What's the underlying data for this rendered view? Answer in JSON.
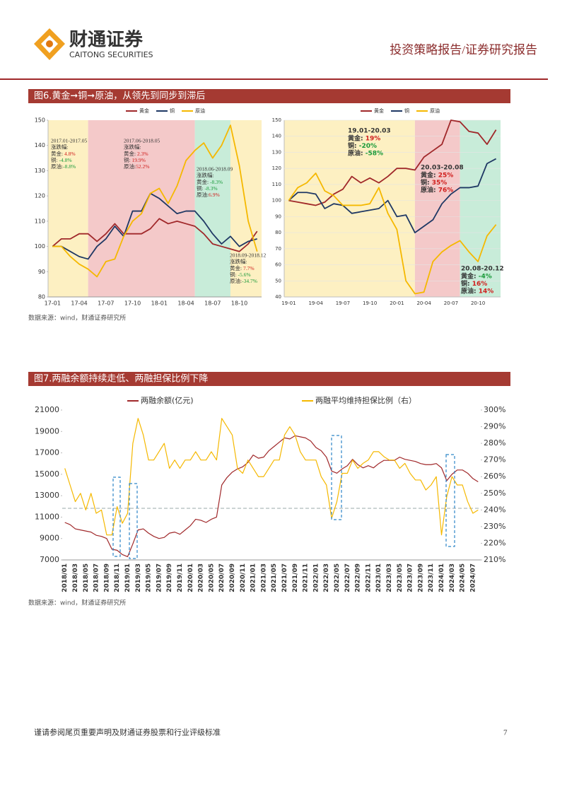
{
  "header": {
    "brand": "财通证券",
    "brand_en": "CAITONG SECURITIES",
    "report_type": "投资策略报告/证券研究报告"
  },
  "figures": [
    {
      "caption": "图6.黄金➞铜➞原油，从领先到同步到滞后",
      "source": "数据来源：wind，财通证券研究所"
    },
    {
      "caption": "图7.两融余额持续走低、两融担保比例下降",
      "source": "数据来源：wind，财通证券研究所"
    }
  ],
  "chart_data": [
    {
      "type": "line",
      "categories": [
        "17-01",
        null,
        null,
        "17-04",
        null,
        null,
        "17-07",
        null,
        null,
        "17-10",
        null,
        null,
        "18-01",
        null,
        null,
        "18-04",
        null,
        null,
        "18-07",
        null,
        null,
        "18-10",
        null,
        null
      ],
      "series": [
        {
          "name": "黄金",
          "color": "#a0282a",
          "values": [
            100,
            103,
            103,
            105,
            105,
            102,
            105,
            109,
            105,
            105,
            105,
            107,
            111,
            109,
            110,
            109,
            108,
            105,
            101,
            100,
            99,
            98,
            101,
            106
          ]
        },
        {
          "name": "铜",
          "color": "#1f3864",
          "values": [
            100,
            100,
            98,
            96,
            95,
            100,
            103,
            108,
            104,
            114,
            114,
            121,
            119,
            116,
            113,
            114,
            114,
            110,
            105,
            101,
            104,
            100,
            102,
            103
          ]
        },
        {
          "name": "原油",
          "color": "#f5b800",
          "values": [
            100,
            100,
            96,
            93,
            91,
            88,
            94,
            95,
            104,
            110,
            113,
            121,
            123,
            117,
            124,
            134,
            138,
            141,
            135,
            140,
            148,
            132,
            110,
            98
          ]
        }
      ],
      "ylim": [
        80,
        150
      ],
      "yticks": [
        80,
        90,
        100,
        110,
        120,
        130,
        140,
        150
      ],
      "grid": false,
      "shaded": [
        {
          "range": [
            0,
            4
          ],
          "color": "#fdf0c2"
        },
        {
          "range": [
            4,
            16
          ],
          "color": "#f4c9c9"
        },
        {
          "range": [
            16,
            20
          ],
          "color": "#c8ecd9"
        },
        {
          "range": [
            20,
            23
          ],
          "color": "#fdf0c2"
        }
      ],
      "annotations": [
        {
          "lines": [
            "2017.01-2017.05",
            "涨跌幅:",
            {
              "label": "黄金: ",
              "value": "4.8%"
            },
            {
              "label": "铜: ",
              "value": "-4.8%"
            },
            {
              "label": "原油:",
              "value": "-8.8%"
            }
          ]
        },
        {
          "lines": [
            "2017.06-2018.05",
            "涨跌幅:",
            {
              "label": "黄金: ",
              "value": "2.3%"
            },
            {
              "label": "铜: ",
              "value": "19.9%"
            },
            {
              "label": "原油:",
              "value": "52.2%"
            }
          ]
        },
        {
          "lines": [
            "2018.06-2018.09",
            "涨跌幅:",
            {
              "label": "黄金: ",
              "value": "-8.3%"
            },
            {
              "label": "铜: ",
              "value": "-8.3%"
            },
            {
              "label": "原油:",
              "value": "6.9%"
            }
          ]
        },
        {
          "lines": [
            "2018.09-2018.12",
            "涨跌幅:",
            {
              "label": "黄金: ",
              "value": "7.7%"
            },
            {
              "label": "铜: ",
              "value": "-5.6%"
            },
            {
              "label": "原油:",
              "value": "-34.7%"
            }
          ]
        }
      ]
    },
    {
      "type": "line",
      "categories": [
        "19-01",
        null,
        null,
        "19-04",
        null,
        null,
        "19-07",
        null,
        null,
        "19-10",
        null,
        null,
        "20-01",
        null,
        null,
        "20-04",
        null,
        null,
        "20-07",
        null,
        null,
        "20-10",
        null,
        null
      ],
      "series": [
        {
          "name": "黄金",
          "color": "#a0282a",
          "values": [
            100,
            99,
            98,
            97,
            99,
            104,
            107,
            115,
            111,
            114,
            111,
            115,
            120,
            120,
            119,
            127,
            131,
            135,
            150,
            149,
            143,
            142,
            135,
            144
          ]
        },
        {
          "name": "铜",
          "color": "#1f3864",
          "values": [
            100,
            105,
            105,
            104,
            95,
            98,
            97,
            92,
            93,
            94,
            95,
            100,
            90,
            91,
            80,
            84,
            88,
            98,
            104,
            108,
            108,
            109,
            123,
            126
          ]
        },
        {
          "name": "原油",
          "color": "#f5b800",
          "values": [
            100,
            108,
            111,
            117,
            106,
            103,
            97,
            97,
            97,
            98,
            108,
            92,
            82,
            50,
            42,
            43,
            62,
            68,
            72,
            75,
            68,
            62,
            78,
            85
          ]
        }
      ],
      "ylim": [
        40,
        150
      ],
      "yticks": [
        40,
        50,
        60,
        70,
        80,
        90,
        100,
        110,
        120,
        130,
        140,
        150
      ],
      "grid": true,
      "shaded": [
        {
          "range": [
            0,
            14
          ],
          "color": "#fdf0c2"
        },
        {
          "range": [
            14,
            19
          ],
          "color": "#f4c9c9"
        },
        {
          "range": [
            19,
            23
          ],
          "color": "#c8ecd9"
        }
      ],
      "annotations": [
        {
          "lines": [
            "19.01-20.03",
            {
              "label": "黄金: ",
              "value": "19%"
            },
            {
              "label": "铜: ",
              "value": "-20%"
            },
            {
              "label": "原油: ",
              "value": "-58%"
            }
          ]
        },
        {
          "lines": [
            "20.03-20.08",
            {
              "label": "黄金: ",
              "value": "25%"
            },
            {
              "label": "铜: ",
              "value": "35%"
            },
            {
              "label": "原油: ",
              "value": "76%"
            }
          ]
        },
        {
          "lines": [
            "20.08-20.12",
            {
              "label": "黄金: ",
              "value": "-4%"
            },
            {
              "label": "铜: ",
              "value": "16%"
            },
            {
              "label": "原油: ",
              "value": "14%"
            }
          ]
        }
      ]
    },
    {
      "type": "line",
      "categories": [
        "2018/01",
        null,
        "2018/03",
        null,
        "2018/05",
        null,
        "2018/07",
        null,
        "2018/09",
        null,
        "2018/11",
        null,
        "2019/01",
        null,
        "2019/03",
        null,
        "2019/05",
        null,
        "2019/07",
        null,
        "2019/09",
        null,
        "2019/11",
        null,
        "2020/01",
        null,
        "2020/03",
        null,
        "2020/05",
        null,
        "2020/07",
        null,
        "2020/09",
        null,
        "2020/11",
        null,
        "2021/01",
        null,
        "2021/03",
        null,
        "2021/05",
        null,
        "2021/07",
        null,
        "2021/09",
        null,
        "2021/11",
        null,
        "2022/01",
        null,
        "2022/03",
        null,
        "2022/05",
        null,
        "2022/07",
        null,
        "2022/09",
        null,
        "2022/11",
        null,
        "2023/01",
        null,
        "2023/03",
        null,
        "2023/05",
        null,
        "2023/07",
        null,
        "2023/09",
        null,
        "2023/11",
        null,
        "2024/01",
        null,
        "2024/03",
        null,
        "2024/05",
        null,
        "2024/07",
        null
      ],
      "series": [
        {
          "name": "两融余额(亿元)",
          "color": "#a0282a",
          "values": [
            10500,
            10300,
            9900,
            9800,
            9700,
            9600,
            9300,
            9200,
            9000,
            8000,
            7900,
            7500,
            7300,
            8500,
            9800,
            9900,
            9500,
            9200,
            9000,
            9100,
            9500,
            9600,
            9400,
            9800,
            10200,
            10800,
            10700,
            10500,
            10800,
            11000,
            14000,
            14700,
            15200,
            15500,
            15700,
            16100,
            16800,
            16500,
            16600,
            17200,
            17600,
            18000,
            18400,
            18300,
            18600,
            18500,
            18400,
            18100,
            17500,
            17200,
            16600,
            15300,
            15100,
            15500,
            15800,
            16400,
            15900,
            15600,
            15800,
            15600,
            16000,
            16300,
            16300,
            16300,
            16600,
            16400,
            16300,
            16200,
            16000,
            15900,
            15900,
            16000,
            15600,
            14400,
            15000,
            15400,
            15400,
            15100,
            14600,
            14300
          ]
        },
        {
          "name": "两融平均维持担保比例（右）",
          "color": "#f5b800",
          "axis": "y2",
          "values": [
            265,
            255,
            245,
            250,
            240,
            250,
            238,
            240,
            225,
            225,
            242,
            232,
            238,
            280,
            295,
            285,
            270,
            270,
            275,
            280,
            265,
            270,
            265,
            270,
            270,
            275,
            270,
            270,
            275,
            270,
            295,
            290,
            285,
            265,
            262,
            270,
            265,
            260,
            260,
            265,
            270,
            270,
            285,
            290,
            285,
            275,
            270,
            270,
            270,
            260,
            255,
            235,
            245,
            262,
            262,
            270,
            265,
            268,
            270,
            275,
            275,
            272,
            270,
            270,
            265,
            268,
            262,
            258,
            258,
            252,
            255,
            260,
            225,
            248,
            260,
            255,
            255,
            245,
            238,
            240
          ]
        }
      ],
      "ylim": [
        7000,
        21000
      ],
      "yticks": [
        7000,
        9000,
        11000,
        13000,
        15000,
        17000,
        19000,
        21000
      ],
      "y2lim": [
        210,
        300
      ],
      "y2ticks": [
        {
          "value": 210,
          "label": "210%"
        },
        {
          "value": 220,
          "label": "220%"
        },
        {
          "value": 230,
          "label": "230%"
        },
        {
          "value": 240,
          "label": "240%"
        },
        {
          "value": 250,
          "label": "250%"
        },
        {
          "value": 260,
          "label": "260%"
        },
        {
          "value": 270,
          "label": "270%"
        },
        {
          "value": 280,
          "label": "280%"
        },
        {
          "value": 290,
          "label": "290%"
        },
        {
          "value": 300,
          "label": "300%"
        }
      ],
      "grid": false,
      "reference_line": 241
    }
  ],
  "footer": {
    "disclaimer": "谨请参阅尾页重要声明及财通证券股票和行业评级标准",
    "page": "7"
  }
}
